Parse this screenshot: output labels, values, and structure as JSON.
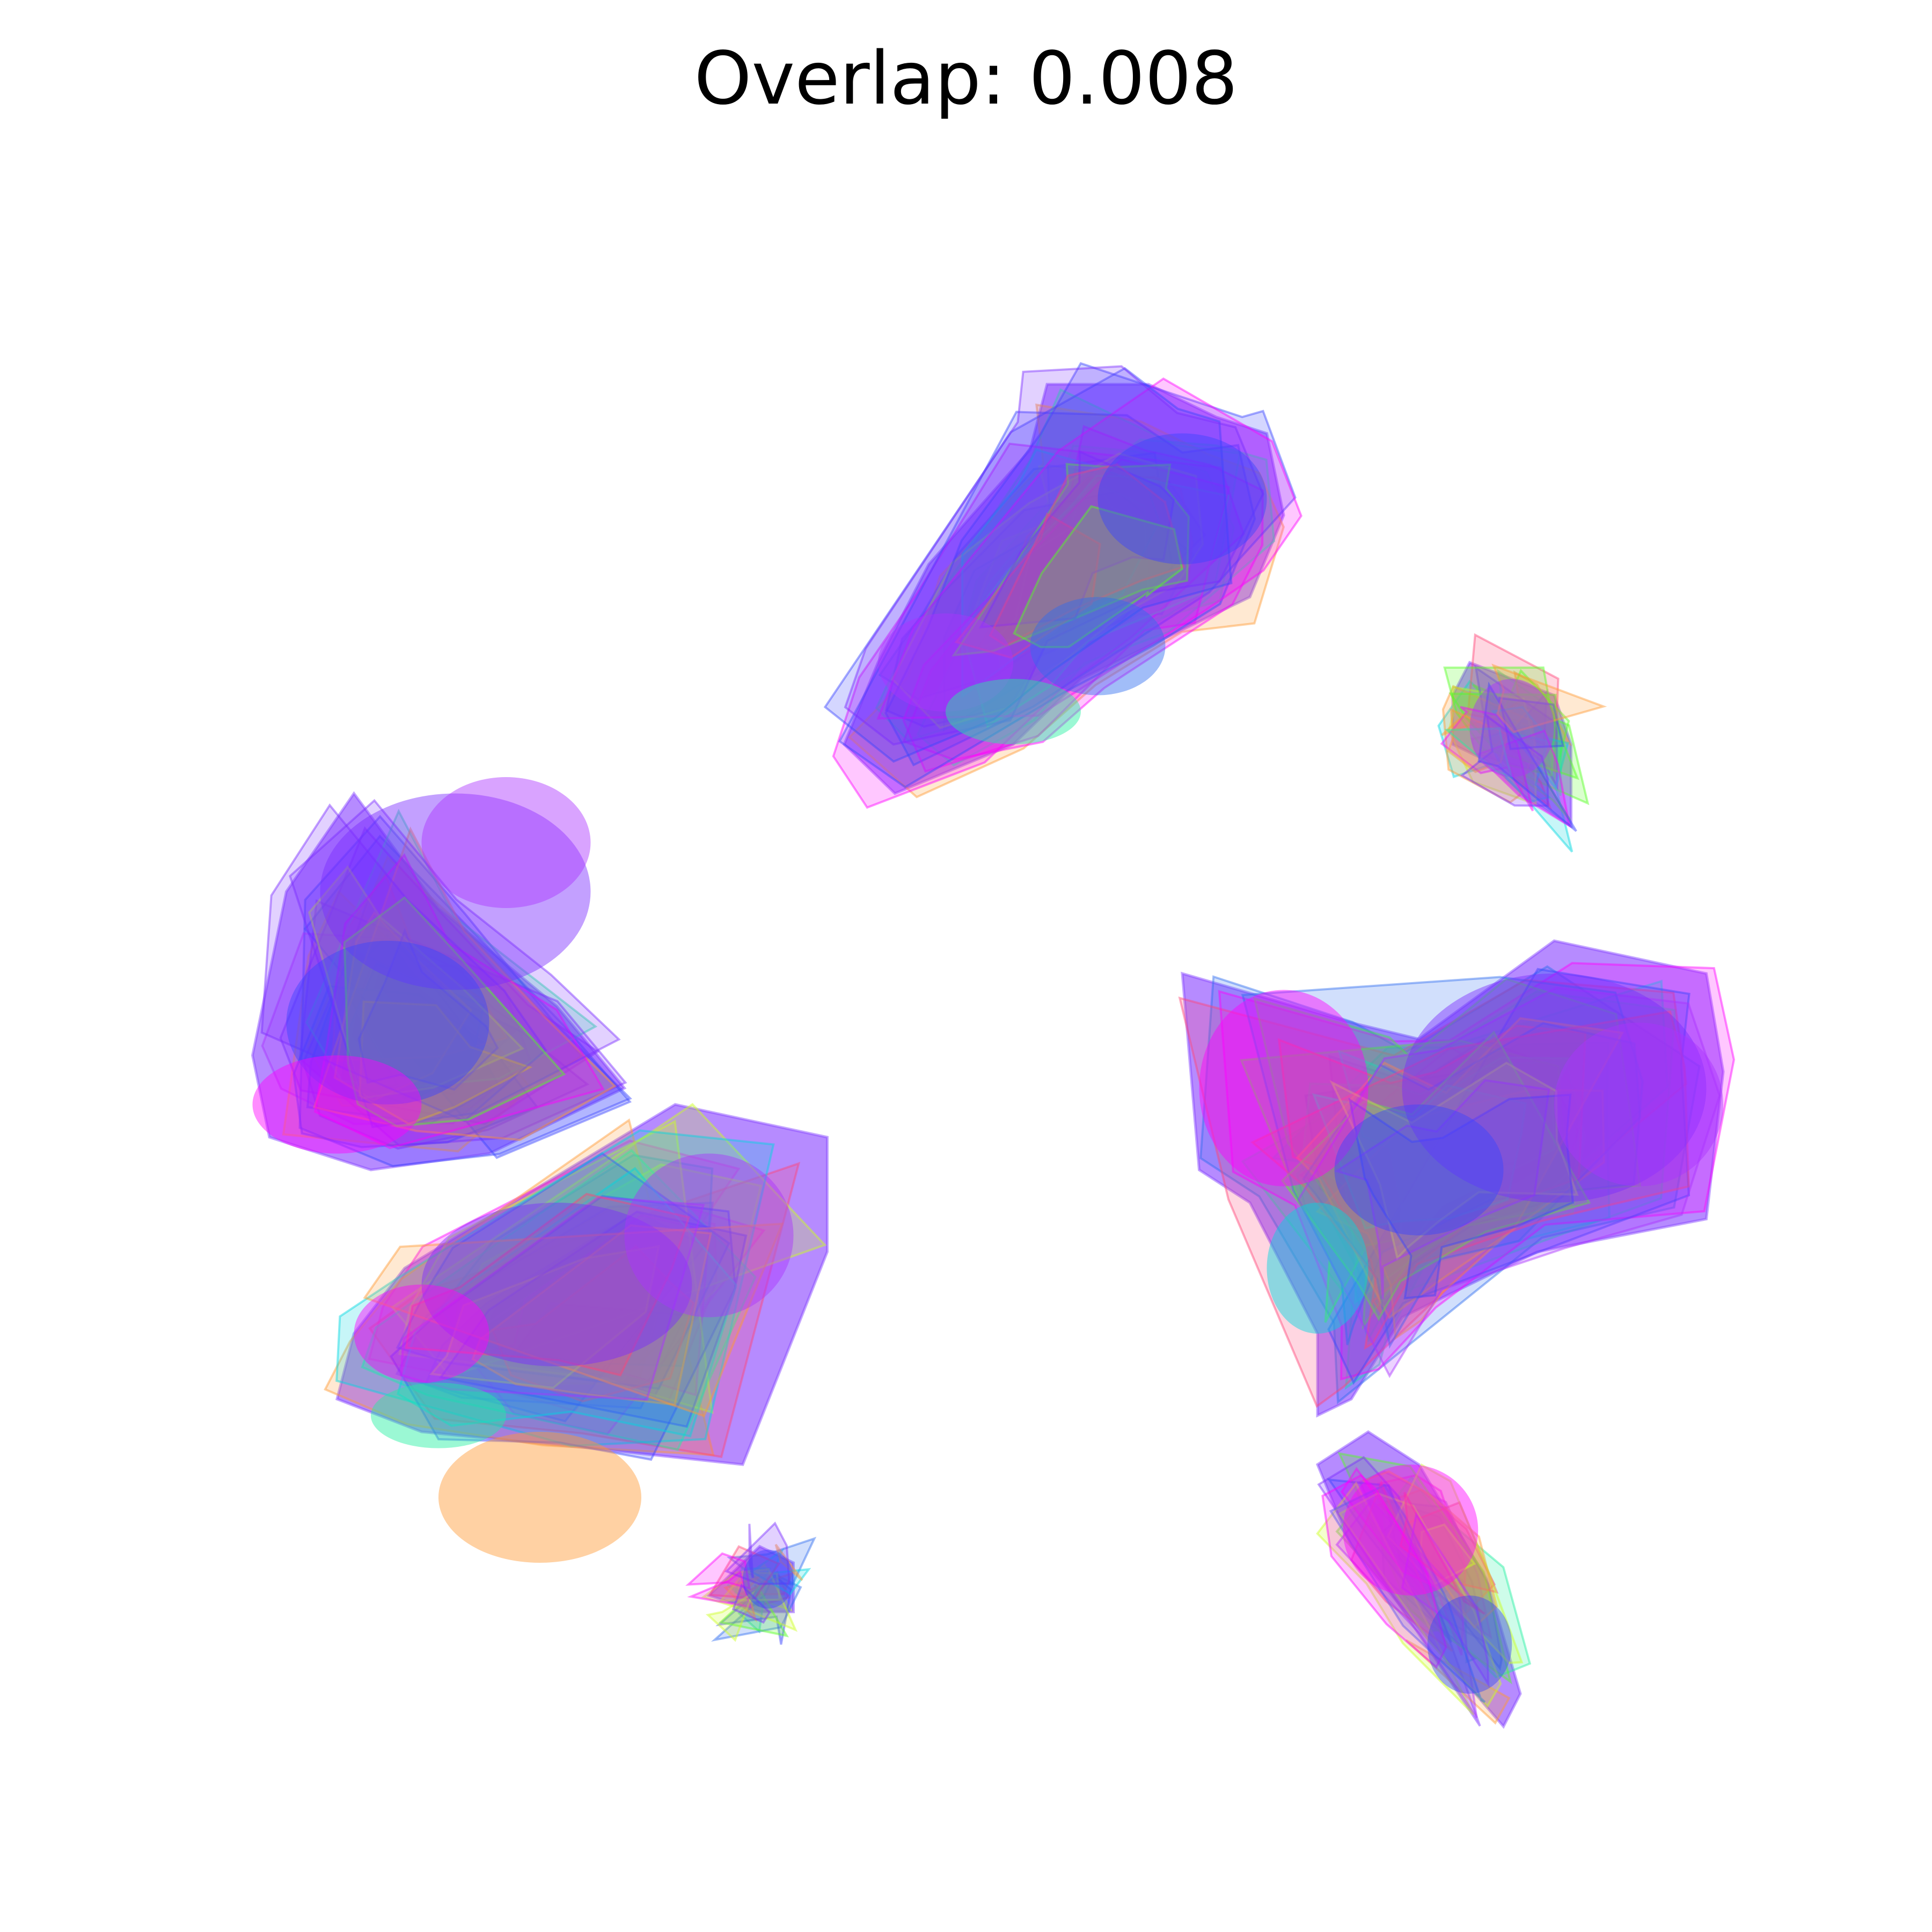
{
  "chart_data": {
    "type": "scatter",
    "title": "Overlap: 0.008",
    "xlabel": "",
    "ylabel": "",
    "axes_visible": false,
    "grid": false,
    "legend": "none",
    "xlim": [
      0,
      100
    ],
    "ylim": [
      0,
      100
    ],
    "colors": [
      "#ff00ff",
      "#aa33ff",
      "#7a2cff",
      "#3a44ff",
      "#2f6cf0",
      "#00d8e0",
      "#22f0a0",
      "#55ff22",
      "#ccff22",
      "#ff9a33",
      "#ff4477"
    ],
    "clusters": [
      {
        "hull": [
          [
            13,
            63
          ],
          [
            18,
            56
          ],
          [
            25,
            50
          ],
          [
            29,
            45
          ],
          [
            21,
            41
          ],
          [
            14,
            40
          ],
          [
            8,
            42
          ],
          [
            7,
            47
          ],
          [
            9,
            57
          ]
        ],
        "blobs": [
          {
            "x": 19,
            "y": 57,
            "rx": 8,
            "ry": 6,
            "color": "#7a2cff"
          },
          {
            "x": 15,
            "y": 49,
            "rx": 6,
            "ry": 5,
            "color": "#3a44ff"
          },
          {
            "x": 12,
            "y": 44,
            "rx": 5,
            "ry": 3,
            "color": "#ff00ff"
          },
          {
            "x": 22,
            "y": 60,
            "rx": 5,
            "ry": 4,
            "color": "#aa33ff"
          }
        ]
      },
      {
        "hull": [
          [
            32,
            44
          ],
          [
            41,
            42
          ],
          [
            41,
            35
          ],
          [
            36,
            22
          ],
          [
            27,
            23
          ],
          [
            17,
            24
          ],
          [
            12,
            26
          ],
          [
            13,
            30
          ],
          [
            16,
            34
          ]
        ],
        "blobs": [
          {
            "x": 25,
            "y": 33,
            "rx": 8,
            "ry": 5,
            "color": "#7a2cff"
          },
          {
            "x": 17,
            "y": 30,
            "rx": 4,
            "ry": 3,
            "color": "#ff00ff"
          },
          {
            "x": 34,
            "y": 36,
            "rx": 5,
            "ry": 5,
            "color": "#aa33ff"
          },
          {
            "x": 18,
            "y": 25,
            "rx": 4,
            "ry": 2,
            "color": "#22f0a0"
          },
          {
            "x": 24,
            "y": 20,
            "rx": 6,
            "ry": 4,
            "color": "#ff9a33"
          }
        ]
      },
      {
        "hull": [
          [
            37,
            17
          ],
          [
            39,
            16
          ],
          [
            39,
            13
          ],
          [
            37,
            13
          ],
          [
            34,
            14
          ],
          [
            36,
            16
          ]
        ],
        "blobs": [
          {
            "x": 37.5,
            "y": 15,
            "rx": 1.5,
            "ry": 1.8,
            "color": "#3a44ff"
          }
        ]
      },
      {
        "hull": [
          [
            54,
            88
          ],
          [
            60,
            88
          ],
          [
            64,
            86
          ],
          [
            67,
            85
          ],
          [
            68,
            80
          ],
          [
            66,
            75
          ],
          [
            62,
            73
          ],
          [
            56,
            70
          ],
          [
            52,
            66
          ],
          [
            45,
            63
          ],
          [
            42,
            66
          ],
          [
            44,
            71
          ],
          [
            47,
            77
          ],
          [
            53,
            84
          ]
        ],
        "blobs": [
          {
            "x": 62,
            "y": 81,
            "rx": 5,
            "ry": 4,
            "color": "#3a44ff"
          },
          {
            "x": 57,
            "y": 72,
            "rx": 4,
            "ry": 3,
            "color": "#2f6cf0"
          },
          {
            "x": 48,
            "y": 71,
            "rx": 4,
            "ry": 3,
            "color": "#aa33ff"
          },
          {
            "x": 52,
            "y": 68,
            "rx": 4,
            "ry": 2,
            "color": "#22f0a0"
          }
        ]
      },
      {
        "hull": [
          [
            79,
            71
          ],
          [
            84,
            69
          ],
          [
            85,
            66
          ],
          [
            85,
            61
          ],
          [
            82,
            63
          ],
          [
            80,
            65
          ],
          [
            78,
            66
          ],
          [
            78,
            69
          ]
        ],
        "blobs": [
          {
            "x": 81.5,
            "y": 67,
            "rx": 2.5,
            "ry": 3,
            "color": "#aa33ff"
          }
        ]
      },
      {
        "hull": [
          [
            62,
            52
          ],
          [
            72,
            49
          ],
          [
            76,
            48
          ],
          [
            84,
            54
          ],
          [
            93,
            52
          ],
          [
            94,
            46
          ],
          [
            93,
            37
          ],
          [
            83,
            35
          ],
          [
            75,
            31
          ],
          [
            72,
            26
          ],
          [
            70,
            25
          ],
          [
            70,
            30
          ],
          [
            66,
            38
          ],
          [
            63,
            40
          ]
        ],
        "blobs": [
          {
            "x": 84,
            "y": 45,
            "rx": 9,
            "ry": 7,
            "color": "#7a2cff"
          },
          {
            "x": 68,
            "y": 45,
            "rx": 5,
            "ry": 6,
            "color": "#ff00ff"
          },
          {
            "x": 89,
            "y": 44,
            "rx": 5,
            "ry": 5,
            "color": "#aa33ff"
          },
          {
            "x": 76,
            "y": 40,
            "rx": 5,
            "ry": 4,
            "color": "#3a44ff"
          },
          {
            "x": 70,
            "y": 34,
            "rx": 3,
            "ry": 4,
            "color": "#00d8e0"
          }
        ]
      },
      {
        "hull": [
          [
            73,
            24
          ],
          [
            76,
            22
          ],
          [
            80,
            15
          ],
          [
            82,
            8
          ],
          [
            81,
            6
          ],
          [
            76,
            12
          ],
          [
            72,
            17
          ],
          [
            70,
            22
          ]
        ],
        "blobs": [
          {
            "x": 75.5,
            "y": 18,
            "rx": 4,
            "ry": 4,
            "color": "#ff00ff"
          },
          {
            "x": 79,
            "y": 11,
            "rx": 2.5,
            "ry": 3,
            "color": "#3a44ff"
          }
        ]
      }
    ]
  }
}
